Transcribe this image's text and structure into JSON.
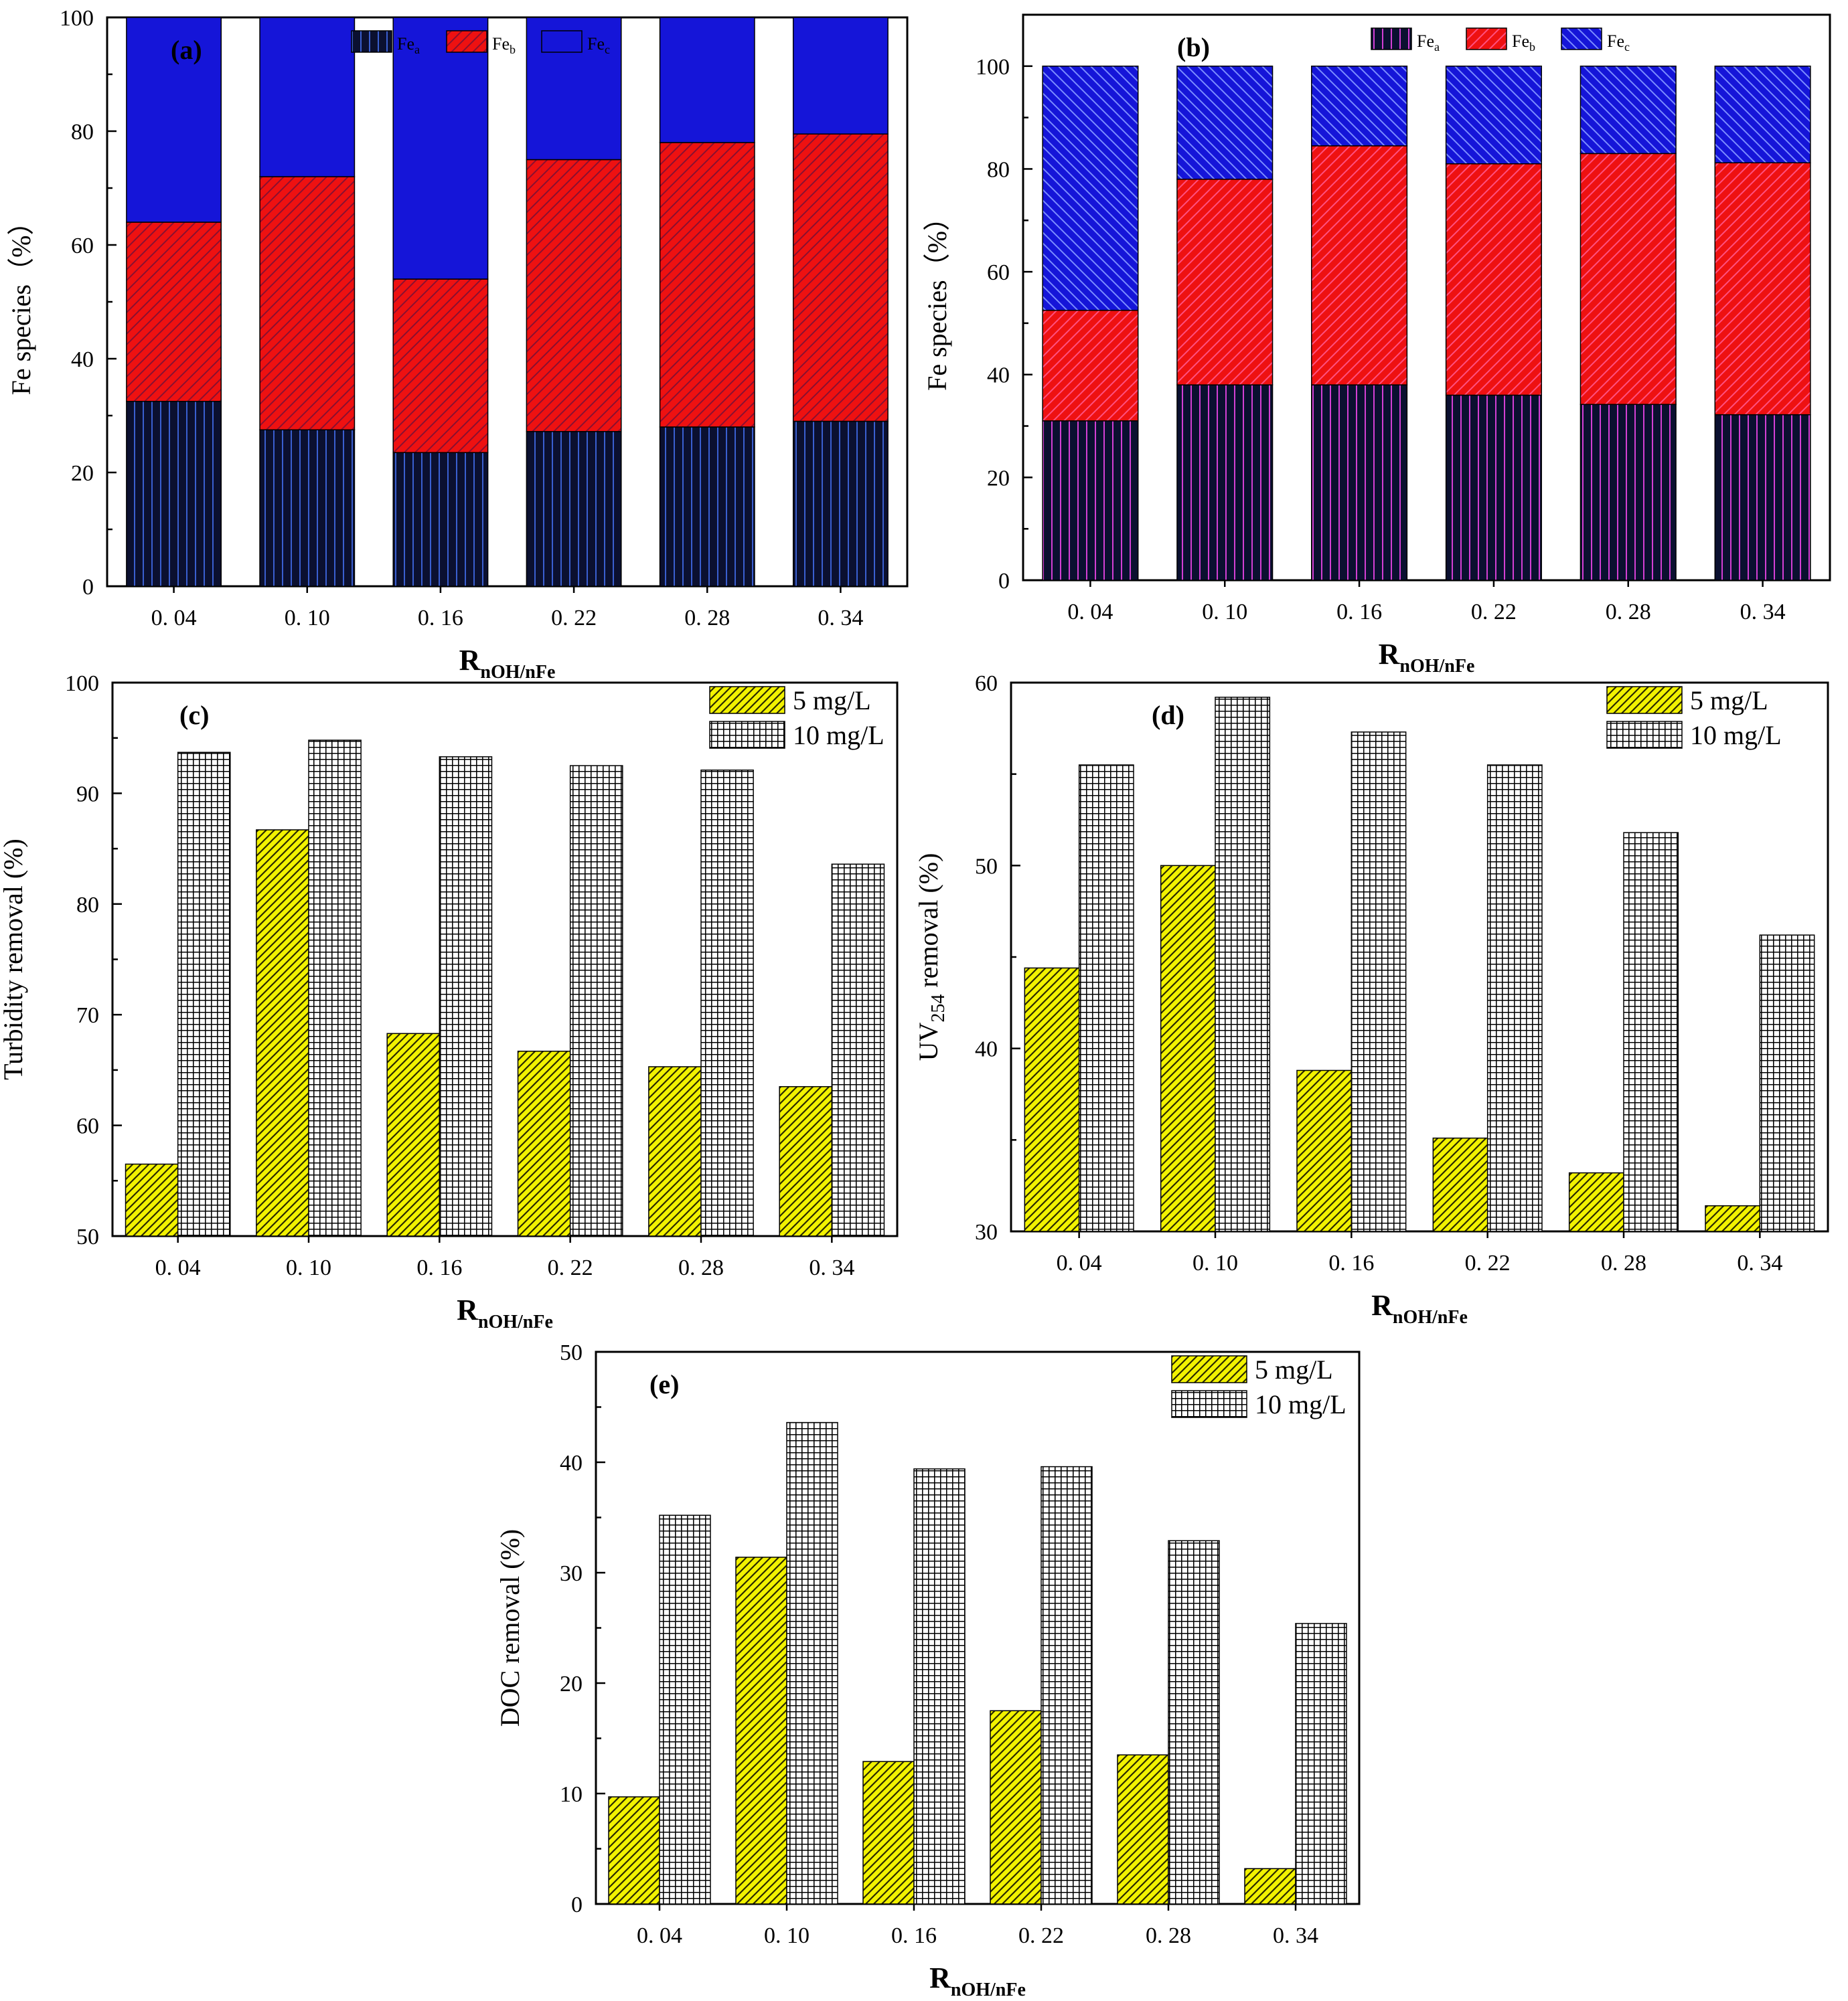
{
  "colors": {
    "fe_a": "#0b1030",
    "fe_b": "#ee1111",
    "fe_c": "#1515d8",
    "mg5": "#f2f200",
    "mg10": "#8a8a8a",
    "axis": "#000000"
  },
  "categories": [
    "0. 04",
    "0. 10",
    "0. 16",
    "0. 22",
    "0. 28",
    "0. 34"
  ],
  "x_axis_title": {
    "main": "R",
    "sub": "nOH/nFe"
  },
  "chart_data": [
    {
      "panel": "(a)",
      "type": "bar",
      "stacked": true,
      "categories": [
        "0. 04",
        "0. 10",
        "0. 16",
        "0. 22",
        "0. 28",
        "0. 34"
      ],
      "ylabel": "Fe  species（%）",
      "ylim": [
        0,
        100
      ],
      "yticks": [
        0,
        20,
        40,
        60,
        80,
        100
      ],
      "legend_position": "top",
      "series": [
        {
          "name": "Fe",
          "subscript": "a",
          "values": [
            32.5,
            27.5,
            23.5,
            27.2,
            28,
            29
          ]
        },
        {
          "name": "Fe",
          "subscript": "b",
          "values": [
            31.5,
            44.5,
            30.5,
            47.8,
            50,
            50.5
          ]
        },
        {
          "name": "Fe",
          "subscript": "c",
          "values": [
            36,
            28,
            46,
            25,
            22,
            20.5
          ]
        }
      ]
    },
    {
      "panel": "(b)",
      "type": "bar",
      "stacked": true,
      "categories": [
        "0. 04",
        "0. 10",
        "0. 16",
        "0. 22",
        "0. 28",
        "0. 34"
      ],
      "ylabel": "Fe species（%）",
      "ylim": [
        0,
        110
      ],
      "yticks": [
        0,
        20,
        40,
        60,
        80,
        100
      ],
      "legend_position": "top",
      "series": [
        {
          "name": "Fe",
          "subscript": "a",
          "values": [
            31,
            38,
            38,
            36,
            34.2,
            32.2
          ]
        },
        {
          "name": "Fe",
          "subscript": "b",
          "values": [
            21.5,
            40,
            46.5,
            45,
            48.8,
            49
          ]
        },
        {
          "name": "Fe",
          "subscript": "c",
          "values": [
            47.5,
            22,
            15.5,
            19,
            17,
            18.8
          ]
        }
      ]
    },
    {
      "panel": "(c)",
      "type": "bar",
      "categories": [
        "0. 04",
        "0. 10",
        "0. 16",
        "0. 22",
        "0. 28",
        "0. 34"
      ],
      "ylabel": "Turbidity removal (%)",
      "ylim": [
        50,
        100
      ],
      "yticks": [
        50,
        60,
        70,
        80,
        90,
        100
      ],
      "legend_position": "top-right",
      "series": [
        {
          "name": "5 mg/L",
          "values": [
            56.5,
            86.7,
            68.3,
            66.7,
            65.3,
            63.5
          ]
        },
        {
          "name": "10 mg/L",
          "values": [
            93.7,
            94.8,
            93.3,
            92.5,
            92.1,
            83.6
          ]
        }
      ]
    },
    {
      "panel": "(d)",
      "type": "bar",
      "categories": [
        "0. 04",
        "0. 10",
        "0. 16",
        "0. 22",
        "0. 28",
        "0. 34"
      ],
      "ylabel": "UV254 removal (%)",
      "ylabel_parts": {
        "pre": "UV",
        "sub": "254",
        "post": " removal (%)"
      },
      "ylim": [
        30,
        60
      ],
      "yticks": [
        30,
        40,
        50,
        60
      ],
      "legend_position": "top-right",
      "series": [
        {
          "name": "5 mg/L",
          "values": [
            44.4,
            50,
            38.8,
            35.1,
            33.2,
            31.4
          ]
        },
        {
          "name": "10 mg/L",
          "values": [
            55.5,
            59.2,
            57.3,
            55.5,
            51.8,
            46.2
          ]
        }
      ]
    },
    {
      "panel": "(e)",
      "type": "bar",
      "categories": [
        "0. 04",
        "0. 10",
        "0. 16",
        "0. 22",
        "0. 28",
        "0. 34"
      ],
      "ylabel": "DOC removal (%)",
      "ylim": [
        0,
        50
      ],
      "yticks": [
        0,
        10,
        20,
        30,
        40,
        50
      ],
      "legend_position": "top-right",
      "series": [
        {
          "name": "5 mg/L",
          "values": [
            9.7,
            31.4,
            12.9,
            17.5,
            13.5,
            3.2
          ]
        },
        {
          "name": "10 mg/L",
          "values": [
            35.2,
            43.6,
            39.4,
            39.6,
            32.9,
            25.4
          ]
        }
      ]
    }
  ]
}
